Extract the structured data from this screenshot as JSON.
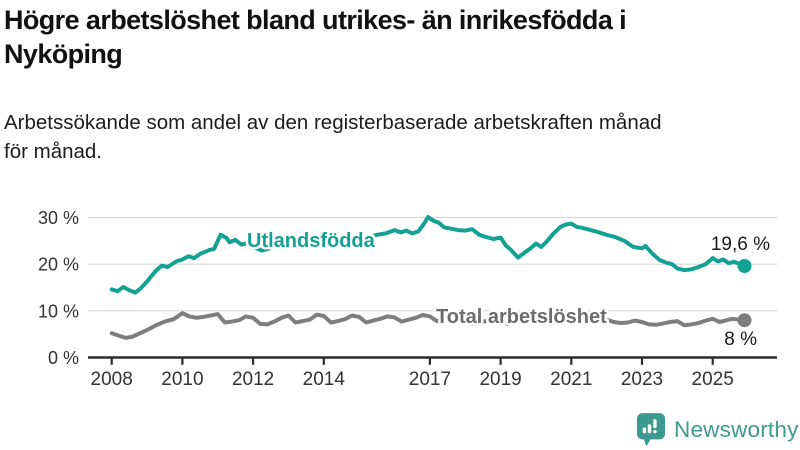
{
  "header": {
    "title_line1": "Högre arbetslöshet bland utrikes- än inrikesfödda i",
    "title_line2": "Nyköping",
    "subtitle_line1": "Arbetssökande som andel av den registerbaserade arbetskraften månad",
    "subtitle_line2": "för månad."
  },
  "colors": {
    "teal": "#14a195",
    "gray": "#7e7e7e",
    "gray_label": "#6c6c6c",
    "grid": "#d9d9d9",
    "axis": "#2b2b2b",
    "text_dark": "#1a1a1a",
    "logo_teal": "#3d9a8e"
  },
  "logo": {
    "text": "Newsworthy",
    "icon": "newsworthy-speech-bubble-bar-chart-icon",
    "color": "#3d9a8e"
  },
  "chart_data": {
    "type": "line",
    "title": "Högre arbetslöshet bland utrikes- än inrikesfödda i Nyköping",
    "subtitle": "Arbetssökande som andel av den registerbaserade arbetskraften månad för månad.",
    "unit": "%",
    "xlabel": "",
    "ylabel": "",
    "xlim": [
      2007.3,
      2026.7
    ],
    "ylim": [
      0,
      32
    ],
    "grid": "horizontal",
    "legend": "inline-labels",
    "yticks": [
      0,
      10,
      20,
      30
    ],
    "ytick_labels": [
      "0 %",
      "10 %",
      "20 %",
      "30 %"
    ],
    "xticks": [
      2008,
      2010,
      2012,
      2014,
      2017,
      2019,
      2021,
      2023,
      2025
    ],
    "xtick_labels": [
      "2008",
      "2010",
      "2012",
      "2014",
      "2017",
      "2019",
      "2021",
      "2023",
      "2025"
    ],
    "series": [
      {
        "id": "utlandsfodda",
        "name": "Utlandsfödda",
        "color": "#14a195",
        "label_color": "#14a195",
        "end_label": "19,6 %",
        "end_value": 19.6,
        "points": [
          [
            2008.0,
            14.6
          ],
          [
            2008.17,
            14.2
          ],
          [
            2008.33,
            15.1
          ],
          [
            2008.5,
            14.4
          ],
          [
            2008.67,
            13.9
          ],
          [
            2008.83,
            14.9
          ],
          [
            2009.0,
            16.3
          ],
          [
            2009.25,
            18.6
          ],
          [
            2009.42,
            19.7
          ],
          [
            2009.58,
            19.4
          ],
          [
            2009.83,
            20.6
          ],
          [
            2010.0,
            21.0
          ],
          [
            2010.17,
            21.7
          ],
          [
            2010.33,
            21.3
          ],
          [
            2010.5,
            22.2
          ],
          [
            2010.75,
            23.0
          ],
          [
            2010.9,
            23.3
          ],
          [
            2011.0,
            25.0
          ],
          [
            2011.08,
            26.3
          ],
          [
            2011.25,
            25.6
          ],
          [
            2011.33,
            24.7
          ],
          [
            2011.5,
            25.2
          ],
          [
            2011.67,
            24.2
          ],
          [
            2011.83,
            24.5
          ],
          [
            2012.0,
            23.7
          ],
          [
            2012.25,
            22.9
          ],
          [
            2012.5,
            23.5
          ],
          [
            2012.75,
            24.1
          ],
          [
            2013.0,
            24.6
          ],
          [
            2013.25,
            23.7
          ],
          [
            2013.5,
            24.1
          ],
          [
            2013.75,
            24.8
          ],
          [
            2014.0,
            25.3
          ],
          [
            2014.25,
            24.7
          ],
          [
            2014.5,
            25.1
          ],
          [
            2014.75,
            25.7
          ],
          [
            2015.0,
            26.1
          ],
          [
            2015.25,
            25.7
          ],
          [
            2015.5,
            26.3
          ],
          [
            2015.75,
            26.6
          ],
          [
            2016.0,
            27.3
          ],
          [
            2016.17,
            26.8
          ],
          [
            2016.33,
            27.2
          ],
          [
            2016.5,
            26.6
          ],
          [
            2016.67,
            27.0
          ],
          [
            2016.83,
            28.6
          ],
          [
            2016.95,
            30.1
          ],
          [
            2017.1,
            29.3
          ],
          [
            2017.25,
            28.9
          ],
          [
            2017.4,
            27.9
          ],
          [
            2017.6,
            27.6
          ],
          [
            2017.8,
            27.3
          ],
          [
            2018.0,
            27.2
          ],
          [
            2018.2,
            27.5
          ],
          [
            2018.4,
            26.3
          ],
          [
            2018.6,
            25.8
          ],
          [
            2018.8,
            25.4
          ],
          [
            2019.0,
            25.7
          ],
          [
            2019.15,
            24.0
          ],
          [
            2019.3,
            23.0
          ],
          [
            2019.5,
            21.4
          ],
          [
            2019.7,
            22.6
          ],
          [
            2019.85,
            23.4
          ],
          [
            2020.0,
            24.4
          ],
          [
            2020.15,
            23.7
          ],
          [
            2020.3,
            24.8
          ],
          [
            2020.5,
            26.6
          ],
          [
            2020.7,
            28.0
          ],
          [
            2020.85,
            28.5
          ],
          [
            2021.0,
            28.7
          ],
          [
            2021.15,
            28.0
          ],
          [
            2021.3,
            27.8
          ],
          [
            2021.5,
            27.4
          ],
          [
            2021.75,
            26.9
          ],
          [
            2022.0,
            26.3
          ],
          [
            2022.25,
            25.8
          ],
          [
            2022.5,
            25.0
          ],
          [
            2022.75,
            23.7
          ],
          [
            2023.0,
            23.4
          ],
          [
            2023.1,
            23.9
          ],
          [
            2023.3,
            22.2
          ],
          [
            2023.5,
            20.9
          ],
          [
            2023.7,
            20.3
          ],
          [
            2023.85,
            20.0
          ],
          [
            2024.0,
            19.1
          ],
          [
            2024.2,
            18.7
          ],
          [
            2024.4,
            18.9
          ],
          [
            2024.6,
            19.4
          ],
          [
            2024.8,
            20.0
          ],
          [
            2025.0,
            21.3
          ],
          [
            2025.15,
            20.6
          ],
          [
            2025.3,
            21.0
          ],
          [
            2025.45,
            20.2
          ],
          [
            2025.6,
            20.5
          ],
          [
            2025.75,
            20.1
          ],
          [
            2025.9,
            19.6
          ]
        ]
      },
      {
        "id": "total",
        "name": "Total arbetslöshet",
        "color": "#7e7e7e",
        "label_color": "#6c6c6c",
        "end_label": "8 %",
        "end_value": 8.0,
        "points": [
          [
            2008.0,
            5.2
          ],
          [
            2008.2,
            4.7
          ],
          [
            2008.4,
            4.2
          ],
          [
            2008.6,
            4.5
          ],
          [
            2008.8,
            5.2
          ],
          [
            2009.0,
            5.9
          ],
          [
            2009.25,
            6.9
          ],
          [
            2009.5,
            7.7
          ],
          [
            2009.75,
            8.2
          ],
          [
            2010.0,
            9.5
          ],
          [
            2010.2,
            8.8
          ],
          [
            2010.4,
            8.5
          ],
          [
            2010.6,
            8.7
          ],
          [
            2010.8,
            9.0
          ],
          [
            2011.0,
            9.3
          ],
          [
            2011.2,
            7.5
          ],
          [
            2011.4,
            7.7
          ],
          [
            2011.6,
            8.0
          ],
          [
            2011.8,
            8.8
          ],
          [
            2012.0,
            8.5
          ],
          [
            2012.2,
            7.2
          ],
          [
            2012.4,
            7.1
          ],
          [
            2012.6,
            7.7
          ],
          [
            2012.8,
            8.5
          ],
          [
            2013.0,
            9.0
          ],
          [
            2013.2,
            7.5
          ],
          [
            2013.4,
            7.8
          ],
          [
            2013.6,
            8.1
          ],
          [
            2013.8,
            9.2
          ],
          [
            2014.0,
            8.9
          ],
          [
            2014.2,
            7.5
          ],
          [
            2014.4,
            7.8
          ],
          [
            2014.6,
            8.2
          ],
          [
            2014.8,
            9.0
          ],
          [
            2015.0,
            8.7
          ],
          [
            2015.2,
            7.5
          ],
          [
            2015.4,
            7.9
          ],
          [
            2015.6,
            8.3
          ],
          [
            2015.8,
            8.8
          ],
          [
            2016.0,
            8.6
          ],
          [
            2016.2,
            7.7
          ],
          [
            2016.4,
            8.1
          ],
          [
            2016.6,
            8.5
          ],
          [
            2016.8,
            9.1
          ],
          [
            2017.0,
            8.8
          ],
          [
            2017.2,
            7.8
          ],
          [
            2017.4,
            8.1
          ],
          [
            2017.6,
            8.3
          ],
          [
            2017.8,
            8.6
          ],
          [
            2018.0,
            8.2
          ],
          [
            2018.2,
            7.3
          ],
          [
            2018.4,
            7.6
          ],
          [
            2018.6,
            7.8
          ],
          [
            2018.8,
            8.2
          ],
          [
            2019.0,
            7.9
          ],
          [
            2019.2,
            7.2
          ],
          [
            2019.4,
            7.5
          ],
          [
            2019.6,
            7.8
          ],
          [
            2019.8,
            8.3
          ],
          [
            2020.0,
            8.1
          ],
          [
            2020.2,
            8.8
          ],
          [
            2020.4,
            9.4
          ],
          [
            2020.6,
            9.6
          ],
          [
            2020.8,
            9.5
          ],
          [
            2021.0,
            9.3
          ],
          [
            2021.2,
            8.6
          ],
          [
            2021.4,
            8.4
          ],
          [
            2021.6,
            8.3
          ],
          [
            2021.8,
            8.5
          ],
          [
            2022.0,
            8.1
          ],
          [
            2022.2,
            7.6
          ],
          [
            2022.4,
            7.4
          ],
          [
            2022.6,
            7.5
          ],
          [
            2022.8,
            7.9
          ],
          [
            2023.0,
            7.6
          ],
          [
            2023.2,
            7.1
          ],
          [
            2023.4,
            7.0
          ],
          [
            2023.6,
            7.3
          ],
          [
            2023.8,
            7.6
          ],
          [
            2024.0,
            7.8
          ],
          [
            2024.2,
            6.9
          ],
          [
            2024.4,
            7.1
          ],
          [
            2024.6,
            7.4
          ],
          [
            2024.8,
            7.9
          ],
          [
            2025.0,
            8.3
          ],
          [
            2025.2,
            7.6
          ],
          [
            2025.4,
            8.0
          ],
          [
            2025.55,
            8.3
          ],
          [
            2025.75,
            8.1
          ],
          [
            2025.9,
            8.0
          ]
        ]
      }
    ]
  }
}
